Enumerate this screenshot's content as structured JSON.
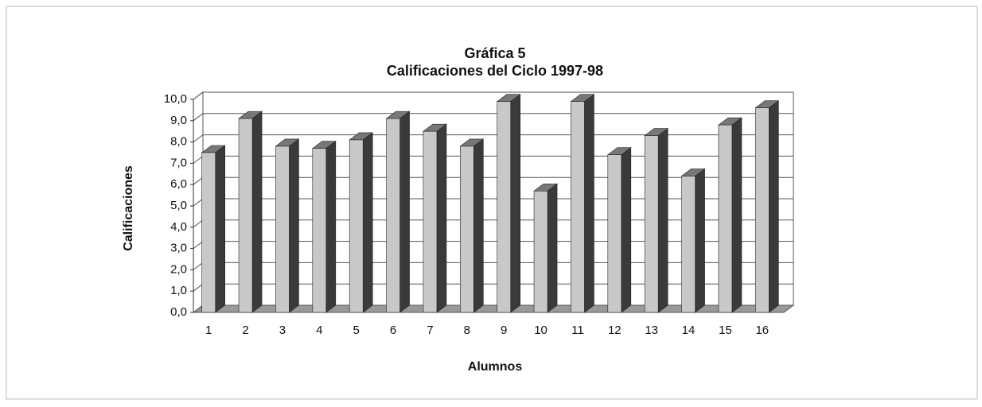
{
  "chart_data": {
    "type": "bar3d",
    "title": "Gráfica 5",
    "subtitle": "Calificaciones del Ciclo 1997-98",
    "x_label": "Alumnos",
    "y_label": "Calificaciones",
    "categories": [
      "1",
      "2",
      "3",
      "4",
      "5",
      "6",
      "7",
      "8",
      "9",
      "10",
      "11",
      "12",
      "13",
      "14",
      "15",
      "16"
    ],
    "values": [
      7.5,
      9.1,
      7.8,
      7.7,
      8.1,
      9.1,
      8.5,
      7.8,
      9.9,
      5.7,
      9.9,
      7.4,
      8.3,
      6.4,
      8.8,
      9.6
    ],
    "color": "#c8c8c8",
    "side_color": "#3a3a3a",
    "ylim": [
      0,
      10
    ],
    "yticks": [
      {
        "value": 0,
        "label": "0,0"
      },
      {
        "value": 1,
        "label": "1,0"
      },
      {
        "value": 2,
        "label": "2,0"
      },
      {
        "value": 3,
        "label": "3,0"
      },
      {
        "value": 4,
        "label": "4,0"
      },
      {
        "value": 5,
        "label": "5,0"
      },
      {
        "value": 6,
        "label": "6,0"
      },
      {
        "value": 7,
        "label": "7,0"
      },
      {
        "value": 8,
        "label": "8,0"
      },
      {
        "value": 9,
        "label": "9,0"
      },
      {
        "value": 10,
        "label": "10,0"
      }
    ],
    "grid": true
  }
}
